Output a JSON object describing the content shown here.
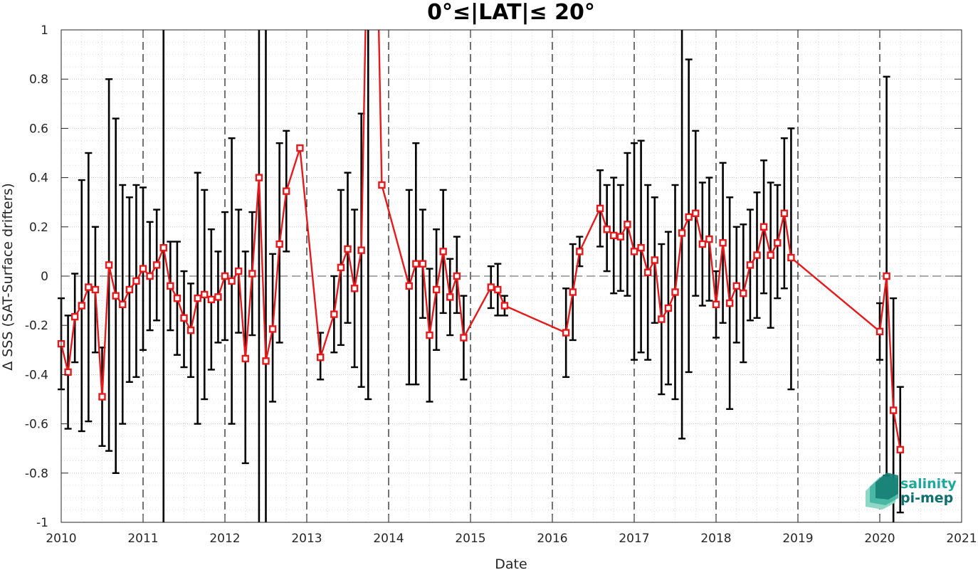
{
  "chart_data": {
    "type": "line",
    "title": "0°≤|LAT|≤ 20°",
    "xlabel": "Date",
    "ylabel": "Δ SSS (SAT-Surface drifters)",
    "xlim": [
      2010,
      2021
    ],
    "ylim": [
      -1,
      1
    ],
    "x_ticks": [
      "2010",
      "2011",
      "2012",
      "2013",
      "2014",
      "2015",
      "2016",
      "2017",
      "2018",
      "2019",
      "2020",
      "2021"
    ],
    "y_ticks": [
      "1",
      "0.8",
      "0.6",
      "0.4",
      "0.2",
      "0",
      "-0.2",
      "-0.4",
      "-0.6",
      "-0.8",
      "-1"
    ],
    "grid": true,
    "year_dividers": "dashed vertical lines at each year",
    "zero_line": "dashed horizontal line at 0",
    "line_color": "#e41a1c",
    "errorbar_color": "#000000",
    "series": [
      {
        "points": [
          {
            "x": "2010-01",
            "y": -0.275,
            "lo": -0.46,
            "hi": -0.09
          },
          {
            "x": "2010-02",
            "y": -0.39,
            "lo": -0.62,
            "hi": -0.16
          },
          {
            "x": "2010-03",
            "y": -0.165,
            "lo": -0.35,
            "hi": 0.01
          },
          {
            "x": "2010-04",
            "y": -0.12,
            "lo": -0.63,
            "hi": 0.39
          },
          {
            "x": "2010-05",
            "y": -0.045,
            "lo": -0.59,
            "hi": 0.5
          },
          {
            "x": "2010-06",
            "y": -0.055,
            "lo": -0.31,
            "hi": 0.2
          },
          {
            "x": "2010-07",
            "y": -0.49,
            "lo": -0.69,
            "hi": -0.29
          },
          {
            "x": "2010-08",
            "y": 0.045,
            "lo": -0.71,
            "hi": 0.8
          },
          {
            "x": "2010-09",
            "y": -0.08,
            "lo": -0.8,
            "hi": 0.64
          },
          {
            "x": "2010-10",
            "y": -0.115,
            "lo": -0.6,
            "hi": 0.37
          },
          {
            "x": "2010-11",
            "y": -0.055,
            "lo": -0.43,
            "hi": 0.32
          },
          {
            "x": "2010-12",
            "y": -0.02,
            "lo": -0.41,
            "hi": 0.37
          },
          {
            "x": "2011-01",
            "y": 0.03,
            "lo": -0.3,
            "hi": 0.36
          },
          {
            "x": "2011-02",
            "y": 0.0,
            "lo": -0.22,
            "hi": 0.22
          },
          {
            "x": "2011-03",
            "y": 0.045,
            "lo": -0.18,
            "hi": 0.27
          },
          {
            "x": "2011-04",
            "y": 0.115,
            "lo": -1.0,
            "hi": 1.0
          },
          {
            "x": "2011-05",
            "y": -0.04,
            "lo": -0.22,
            "hi": 0.14
          },
          {
            "x": "2011-06",
            "y": -0.09,
            "lo": -0.32,
            "hi": 0.14
          },
          {
            "x": "2011-07",
            "y": -0.17,
            "lo": -0.37,
            "hi": 0.02
          },
          {
            "x": "2011-08",
            "y": -0.22,
            "lo": -0.41,
            "hi": -0.03
          },
          {
            "x": "2011-09",
            "y": -0.09,
            "lo": -0.6,
            "hi": 0.42
          },
          {
            "x": "2011-10",
            "y": -0.075,
            "lo": -0.5,
            "hi": 0.35
          },
          {
            "x": "2011-11",
            "y": -0.095,
            "lo": -0.38,
            "hi": 0.19
          },
          {
            "x": "2011-12",
            "y": -0.085,
            "lo": -0.27,
            "hi": 0.1
          },
          {
            "x": "2012-01",
            "y": 0.0,
            "lo": -0.26,
            "hi": 0.26
          },
          {
            "x": "2012-02",
            "y": -0.02,
            "lo": -0.6,
            "hi": 0.56
          },
          {
            "x": "2012-03",
            "y": 0.02,
            "lo": -0.23,
            "hi": 0.27
          },
          {
            "x": "2012-04",
            "y": -0.335,
            "lo": -0.76,
            "hi": 0.1
          },
          {
            "x": "2012-05",
            "y": 0.01,
            "lo": -0.24,
            "hi": 0.26
          },
          {
            "x": "2012-06",
            "y": 0.4,
            "lo": -1.0,
            "hi": 1.0
          },
          {
            "x": "2012-07",
            "y": -0.345,
            "lo": -1.0,
            "hi": 1.0
          },
          {
            "x": "2012-08",
            "y": -0.215,
            "lo": -0.51,
            "hi": 0.09
          },
          {
            "x": "2012-09",
            "y": 0.13,
            "lo": -0.27,
            "hi": 0.54
          },
          {
            "x": "2012-10",
            "y": 0.345,
            "lo": 0.1,
            "hi": 0.59
          },
          {
            "x": "2012-12",
            "y": 0.52,
            "lo": 0.52,
            "hi": 0.52
          },
          {
            "x": "2013-03",
            "y": -0.33,
            "lo": -0.42,
            "hi": -0.23
          },
          {
            "x": "2013-05",
            "y": -0.155,
            "lo": -0.31,
            "hi": 0.0
          },
          {
            "x": "2013-06",
            "y": 0.035,
            "lo": -0.28,
            "hi": 0.35
          },
          {
            "x": "2013-07",
            "y": 0.11,
            "lo": -0.19,
            "hi": 0.42
          },
          {
            "x": "2013-08",
            "y": -0.05,
            "lo": -0.37,
            "hi": 0.27
          },
          {
            "x": "2013-09",
            "y": 0.105,
            "lo": -0.45,
            "hi": 0.66
          },
          {
            "x": "2013-10",
            "y": 1.6,
            "lo": -0.5,
            "hi": 3.7
          },
          {
            "x": "2013-11",
            "y": 1.8,
            "lo": 1.8,
            "hi": 1.8
          },
          {
            "x": "2013-12",
            "y": 0.37,
            "lo": 0.37,
            "hi": 0.37
          },
          {
            "x": "2014-04",
            "y": -0.04,
            "lo": -0.44,
            "hi": 0.35
          },
          {
            "x": "2014-05",
            "y": 0.05,
            "lo": -0.44,
            "hi": 0.54
          },
          {
            "x": "2014-06",
            "y": 0.05,
            "lo": -0.17,
            "hi": 0.27
          },
          {
            "x": "2014-07",
            "y": -0.24,
            "lo": -0.51,
            "hi": 0.03
          },
          {
            "x": "2014-08",
            "y": -0.055,
            "lo": -0.3,
            "hi": 0.19
          },
          {
            "x": "2014-09",
            "y": 0.1,
            "lo": -0.15,
            "hi": 0.35
          },
          {
            "x": "2014-10",
            "y": -0.085,
            "lo": -0.24,
            "hi": 0.07
          },
          {
            "x": "2014-11",
            "y": 0.0,
            "lo": -0.15,
            "hi": 0.16
          },
          {
            "x": "2014-12",
            "y": -0.25,
            "lo": -0.42,
            "hi": -0.08
          },
          {
            "x": "2015-04",
            "y": -0.045,
            "lo": -0.13,
            "hi": 0.04
          },
          {
            "x": "2015-05",
            "y": -0.055,
            "lo": -0.16,
            "hi": 0.05
          },
          {
            "x": "2015-06",
            "y": -0.12,
            "lo": -0.16,
            "hi": -0.08
          },
          {
            "x": "2016-03",
            "y": -0.23,
            "lo": -0.41,
            "hi": -0.05
          },
          {
            "x": "2016-04",
            "y": -0.065,
            "lo": -0.26,
            "hi": 0.13
          },
          {
            "x": "2016-05",
            "y": 0.1,
            "lo": 0.04,
            "hi": 0.16
          },
          {
            "x": "2016-08",
            "y": 0.275,
            "lo": 0.12,
            "hi": 0.43
          },
          {
            "x": "2016-09",
            "y": 0.19,
            "lo": 0.02,
            "hi": 0.37
          },
          {
            "x": "2016-10",
            "y": 0.165,
            "lo": -0.07,
            "hi": 0.4
          },
          {
            "x": "2016-11",
            "y": 0.16,
            "lo": -0.06,
            "hi": 0.37
          },
          {
            "x": "2016-12",
            "y": 0.21,
            "lo": -0.08,
            "hi": 0.5
          },
          {
            "x": "2017-01",
            "y": 0.1,
            "lo": -0.34,
            "hi": 0.54
          },
          {
            "x": "2017-02",
            "y": 0.115,
            "lo": -0.31,
            "hi": 0.55
          },
          {
            "x": "2017-03",
            "y": 0.015,
            "lo": -0.34,
            "hi": 0.37
          },
          {
            "x": "2017-04",
            "y": 0.065,
            "lo": -0.19,
            "hi": 0.32
          },
          {
            "x": "2017-05",
            "y": -0.175,
            "lo": -0.48,
            "hi": 0.13
          },
          {
            "x": "2017-06",
            "y": -0.13,
            "lo": -0.44,
            "hi": 0.18
          },
          {
            "x": "2017-07",
            "y": -0.065,
            "lo": -0.5,
            "hi": 0.37
          },
          {
            "x": "2017-08",
            "y": 0.175,
            "lo": -0.66,
            "hi": 1.0
          },
          {
            "x": "2017-09",
            "y": 0.24,
            "lo": -0.39,
            "hi": 0.88
          },
          {
            "x": "2017-10",
            "y": 0.255,
            "lo": -0.08,
            "hi": 0.59
          },
          {
            "x": "2017-11",
            "y": 0.13,
            "lo": -0.12,
            "hi": 0.38
          },
          {
            "x": "2017-12",
            "y": 0.15,
            "lo": -0.1,
            "hi": 0.4
          },
          {
            "x": "2018-01",
            "y": -0.115,
            "lo": -0.25,
            "hi": 0.02
          },
          {
            "x": "2018-02",
            "y": 0.135,
            "lo": -0.19,
            "hi": 0.46
          },
          {
            "x": "2018-03",
            "y": -0.11,
            "lo": -0.54,
            "hi": 0.32
          },
          {
            "x": "2018-04",
            "y": -0.04,
            "lo": -0.27,
            "hi": 0.2
          },
          {
            "x": "2018-05",
            "y": -0.07,
            "lo": -0.35,
            "hi": 0.21
          },
          {
            "x": "2018-06",
            "y": 0.045,
            "lo": -0.18,
            "hi": 0.27
          },
          {
            "x": "2018-07",
            "y": 0.085,
            "lo": -0.17,
            "hi": 0.34
          },
          {
            "x": "2018-08",
            "y": 0.2,
            "lo": -0.07,
            "hi": 0.47
          },
          {
            "x": "2018-09",
            "y": 0.085,
            "lo": -0.21,
            "hi": 0.38
          },
          {
            "x": "2018-10",
            "y": 0.135,
            "lo": -0.09,
            "hi": 0.37
          },
          {
            "x": "2018-11",
            "y": 0.255,
            "lo": -0.05,
            "hi": 0.56
          },
          {
            "x": "2018-12",
            "y": 0.075,
            "lo": -0.46,
            "hi": 0.6
          },
          {
            "x": "2020-01",
            "y": -0.225,
            "lo": -0.34,
            "hi": -0.11
          },
          {
            "x": "2020-02",
            "y": 0.0,
            "lo": -0.81,
            "hi": 0.81
          },
          {
            "x": "2020-03",
            "y": -0.545,
            "lo": -1.0,
            "hi": -0.09
          },
          {
            "x": "2020-04",
            "y": -0.705,
            "lo": -0.96,
            "hi": -0.45
          }
        ]
      }
    ]
  },
  "logo": {
    "line1": "salinity",
    "line2": "pi-mep",
    "color1": "#1fa89a",
    "color2": "#0f6e6e"
  }
}
